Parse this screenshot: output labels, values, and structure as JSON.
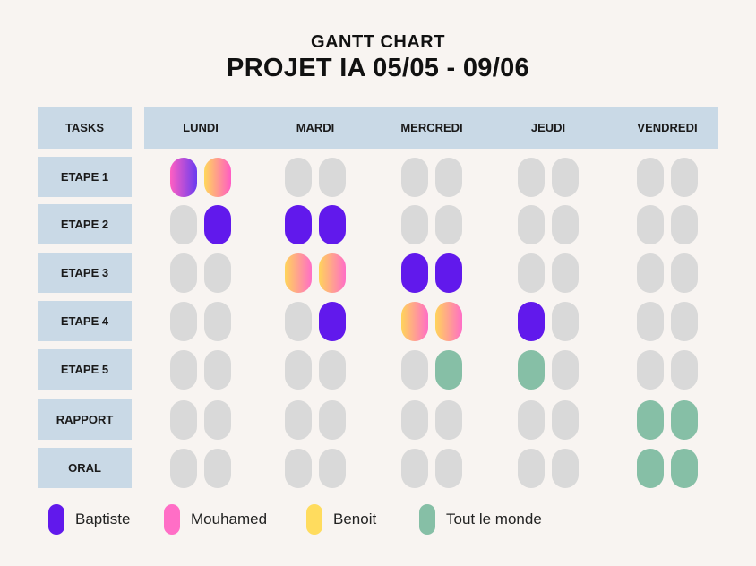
{
  "header": {
    "title": "GANTT CHART",
    "subtitle": "PROJET IA 05/05 - 09/06"
  },
  "colors": {
    "B": "#6119ec",
    "BM": "linear-gradient(90deg, #ff5fc2 0%, #6a3cf0 100%)",
    "MY": "linear-gradient(90deg, #ffd85a 0%, #ff5cc4 100%)",
    "YM": "linear-gradient(90deg, #ffd45a 0%, #ff6ec6 100%)",
    "T": "#86bfa6",
    "empty": "#d9d9d9"
  },
  "chart_data": {
    "type": "table",
    "tasks_label": "TASKS",
    "days": [
      "LUNDI",
      "MARDI",
      "MERCREDI",
      "JEUDI",
      "VENDREDI"
    ],
    "tasks": [
      "ETAPE 1",
      "ETAPE 2",
      "ETAPE 3",
      "ETAPE 4",
      "ETAPE 5",
      "RAPPORT",
      "ORAL"
    ],
    "cells": [
      [
        [
          "BM",
          "MY"
        ],
        [
          "",
          ""
        ],
        [
          "",
          ""
        ],
        [
          "",
          ""
        ],
        [
          "",
          ""
        ]
      ],
      [
        [
          "",
          "B"
        ],
        [
          "B",
          "B"
        ],
        [
          "",
          ""
        ],
        [
          "",
          ""
        ],
        [
          "",
          ""
        ]
      ],
      [
        [
          "",
          ""
        ],
        [
          "YM",
          "YM"
        ],
        [
          "B",
          "B"
        ],
        [
          "",
          ""
        ],
        [
          "",
          ""
        ]
      ],
      [
        [
          "",
          ""
        ],
        [
          "",
          "B"
        ],
        [
          "YM",
          "YM"
        ],
        [
          "B",
          ""
        ],
        [
          "",
          ""
        ]
      ],
      [
        [
          "",
          ""
        ],
        [
          "",
          ""
        ],
        [
          "",
          "T"
        ],
        [
          "T",
          ""
        ],
        [
          "",
          ""
        ]
      ],
      [
        [
          "",
          ""
        ],
        [
          "",
          ""
        ],
        [
          "",
          ""
        ],
        [
          "",
          ""
        ],
        [
          "T",
          "T"
        ]
      ],
      [
        [
          "",
          ""
        ],
        [
          "",
          ""
        ],
        [
          "",
          ""
        ],
        [
          "",
          ""
        ],
        [
          "T",
          "T"
        ]
      ]
    ],
    "legend": [
      {
        "label": "Baptiste",
        "color": "#6119ec"
      },
      {
        "label": "Mouhamed",
        "color": "#ff6ec6"
      },
      {
        "label": "Benoit",
        "color": "#ffdc5e"
      },
      {
        "label": "Tout le monde",
        "color": "#86bfa6"
      }
    ]
  }
}
